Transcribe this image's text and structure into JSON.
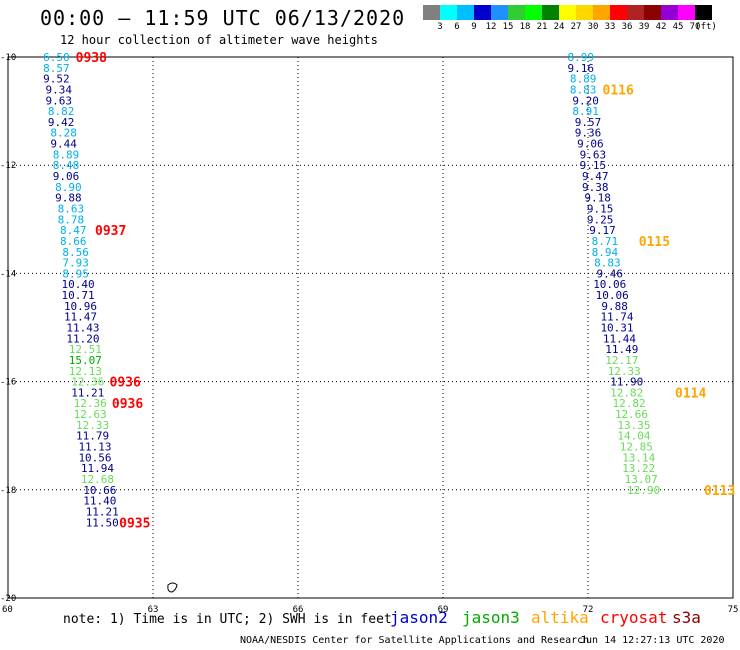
{
  "header": {
    "title": "00:00 – 11:59 UTC 06/13/2020",
    "subtitle": "12 hour collection of altimeter wave heights"
  },
  "legend": {
    "swatches": [
      {
        "color": "#808080"
      },
      {
        "color": "#00ffff"
      },
      {
        "color": "#00bfff"
      },
      {
        "color": "#0000cd"
      },
      {
        "color": "#1e90ff"
      },
      {
        "color": "#32cd32"
      },
      {
        "color": "#00ff00"
      },
      {
        "color": "#008000"
      },
      {
        "color": "#ffff00"
      },
      {
        "color": "#ffd700"
      },
      {
        "color": "#ffa500"
      },
      {
        "color": "#ff0000"
      },
      {
        "color": "#b22222"
      },
      {
        "color": "#8b0000"
      },
      {
        "color": "#9400d3"
      },
      {
        "color": "#ff00ff"
      },
      {
        "color": "#000000"
      }
    ],
    "labels": [
      "3",
      "6",
      "9",
      "12",
      "15",
      "18",
      "21",
      "24",
      "27",
      "30",
      "33",
      "36",
      "39",
      "42",
      "45",
      "70",
      "(ft)"
    ]
  },
  "map": {
    "x_ticks": [
      "60",
      "63",
      "66",
      "69",
      "72",
      "75"
    ],
    "y_ticks": [
      "-10",
      "-12",
      "-14",
      "-16",
      "-18",
      "-20"
    ],
    "lon_range": [
      60,
      75
    ],
    "lat_range": [
      -20,
      -10
    ]
  },
  "colors": {
    "cryosat": "#ff0000",
    "altika": "#ffa500",
    "cyan": "#00b0e8",
    "blue": "#00008b",
    "green": "#66dd55",
    "darkgreen": "#00aa00"
  },
  "chart_data": {
    "type": "scatter",
    "x_label": "",
    "y_label": "",
    "units": "ft",
    "tracks": [
      {
        "name": "track-west",
        "points": [
          {
            "lon": 61.0,
            "lat": -10.0,
            "v": "6.50",
            "c": "cyan"
          },
          {
            "lon": 61.0,
            "lat": -10.2,
            "v": "8.57",
            "c": "cyan"
          },
          {
            "lon": 61.0,
            "lat": -10.4,
            "v": "9.52",
            "c": "blue"
          },
          {
            "lon": 61.05,
            "lat": -10.6,
            "v": "9.34",
            "c": "blue"
          },
          {
            "lon": 61.05,
            "lat": -10.8,
            "v": "9.63",
            "c": "blue"
          },
          {
            "lon": 61.1,
            "lat": -11.0,
            "v": "8.82",
            "c": "cyan"
          },
          {
            "lon": 61.1,
            "lat": -11.2,
            "v": "9.42",
            "c": "blue"
          },
          {
            "lon": 61.15,
            "lat": -11.4,
            "v": "8.28",
            "c": "cyan"
          },
          {
            "lon": 61.15,
            "lat": -11.6,
            "v": "9.44",
            "c": "blue"
          },
          {
            "lon": 61.2,
            "lat": -11.8,
            "v": "8.89",
            "c": "cyan"
          },
          {
            "lon": 61.2,
            "lat": -12.0,
            "v": "8.48",
            "c": "cyan"
          },
          {
            "lon": 61.2,
            "lat": -12.2,
            "v": "9.06",
            "c": "blue"
          },
          {
            "lon": 61.25,
            "lat": -12.4,
            "v": "8.90",
            "c": "cyan"
          },
          {
            "lon": 61.25,
            "lat": -12.6,
            "v": "9.88",
            "c": "blue"
          },
          {
            "lon": 61.3,
            "lat": -12.8,
            "v": "8.63",
            "c": "cyan"
          },
          {
            "lon": 61.3,
            "lat": -13.0,
            "v": "8.78",
            "c": "cyan"
          },
          {
            "lon": 61.35,
            "lat": -13.2,
            "v": "8.47",
            "c": "cyan"
          },
          {
            "lon": 61.35,
            "lat": -13.4,
            "v": "8.66",
            "c": "cyan"
          },
          {
            "lon": 61.4,
            "lat": -13.6,
            "v": "8.56",
            "c": "cyan"
          },
          {
            "lon": 61.4,
            "lat": -13.8,
            "v": "7.93",
            "c": "cyan"
          },
          {
            "lon": 61.4,
            "lat": -14.0,
            "v": "8.95",
            "c": "cyan"
          },
          {
            "lon": 61.45,
            "lat": -14.2,
            "v": "10.40",
            "c": "blue"
          },
          {
            "lon": 61.45,
            "lat": -14.4,
            "v": "10.71",
            "c": "blue"
          },
          {
            "lon": 61.5,
            "lat": -14.6,
            "v": "10.96",
            "c": "blue"
          },
          {
            "lon": 61.5,
            "lat": -14.8,
            "v": "11.47",
            "c": "blue"
          },
          {
            "lon": 61.55,
            "lat": -15.0,
            "v": "11.43",
            "c": "blue"
          },
          {
            "lon": 61.55,
            "lat": -15.2,
            "v": "11.20",
            "c": "blue"
          },
          {
            "lon": 61.6,
            "lat": -15.4,
            "v": "12.51",
            "c": "green"
          },
          {
            "lon": 61.6,
            "lat": -15.6,
            "v": "15.07",
            "c": "darkgreen"
          },
          {
            "lon": 61.6,
            "lat": -15.8,
            "v": "12.13",
            "c": "green"
          },
          {
            "lon": 61.65,
            "lat": -16.0,
            "v": "12.36",
            "c": "green"
          },
          {
            "lon": 61.65,
            "lat": -16.2,
            "v": "11.21",
            "c": "blue"
          },
          {
            "lon": 61.7,
            "lat": -16.4,
            "v": "12.36",
            "c": "green"
          },
          {
            "lon": 61.7,
            "lat": -16.6,
            "v": "12.63",
            "c": "green"
          },
          {
            "lon": 61.75,
            "lat": -16.8,
            "v": "12.33",
            "c": "green"
          },
          {
            "lon": 61.75,
            "lat": -17.0,
            "v": "11.79",
            "c": "blue"
          },
          {
            "lon": 61.8,
            "lat": -17.2,
            "v": "11.13",
            "c": "blue"
          },
          {
            "lon": 61.8,
            "lat": -17.4,
            "v": "10.56",
            "c": "blue"
          },
          {
            "lon": 61.85,
            "lat": -17.6,
            "v": "11.94",
            "c": "blue"
          },
          {
            "lon": 61.85,
            "lat": -17.8,
            "v": "12.68",
            "c": "green"
          },
          {
            "lon": 61.9,
            "lat": -18.0,
            "v": "10.66",
            "c": "blue"
          },
          {
            "lon": 61.9,
            "lat": -18.2,
            "v": "11.40",
            "c": "blue"
          },
          {
            "lon": 61.95,
            "lat": -18.4,
            "v": "11.21",
            "c": "blue"
          },
          {
            "lon": 61.95,
            "lat": -18.6,
            "v": "11.50",
            "c": "blue"
          }
        ]
      },
      {
        "name": "track-east",
        "points": [
          {
            "lon": 71.85,
            "lat": -10.0,
            "v": "8.99",
            "c": "cyan"
          },
          {
            "lon": 71.85,
            "lat": -10.2,
            "v": "9.16",
            "c": "blue"
          },
          {
            "lon": 71.9,
            "lat": -10.4,
            "v": "8.89",
            "c": "cyan"
          },
          {
            "lon": 71.9,
            "lat": -10.6,
            "v": "8.83",
            "c": "cyan"
          },
          {
            "lon": 71.95,
            "lat": -10.8,
            "v": "9.20",
            "c": "blue"
          },
          {
            "lon": 71.95,
            "lat": -11.0,
            "v": "8.91",
            "c": "cyan"
          },
          {
            "lon": 72.0,
            "lat": -11.2,
            "v": "9.57",
            "c": "blue"
          },
          {
            "lon": 72.0,
            "lat": -11.4,
            "v": "9.36",
            "c": "blue"
          },
          {
            "lon": 72.05,
            "lat": -11.6,
            "v": "9.06",
            "c": "blue"
          },
          {
            "lon": 72.1,
            "lat": -11.8,
            "v": "9.63",
            "c": "blue"
          },
          {
            "lon": 72.1,
            "lat": -12.0,
            "v": "9.15",
            "c": "blue"
          },
          {
            "lon": 72.15,
            "lat": -12.2,
            "v": "9.47",
            "c": "blue"
          },
          {
            "lon": 72.15,
            "lat": -12.4,
            "v": "9.38",
            "c": "blue"
          },
          {
            "lon": 72.2,
            "lat": -12.6,
            "v": "9.18",
            "c": "blue"
          },
          {
            "lon": 72.25,
            "lat": -12.8,
            "v": "9.15",
            "c": "blue"
          },
          {
            "lon": 72.25,
            "lat": -13.0,
            "v": "9.25",
            "c": "blue"
          },
          {
            "lon": 72.3,
            "lat": -13.2,
            "v": "9.17",
            "c": "blue"
          },
          {
            "lon": 72.35,
            "lat": -13.4,
            "v": "8.71",
            "c": "cyan"
          },
          {
            "lon": 72.35,
            "lat": -13.6,
            "v": "8.94",
            "c": "cyan"
          },
          {
            "lon": 72.4,
            "lat": -13.8,
            "v": "8.83",
            "c": "cyan"
          },
          {
            "lon": 72.45,
            "lat": -14.0,
            "v": "9.46",
            "c": "blue"
          },
          {
            "lon": 72.45,
            "lat": -14.2,
            "v": "10.06",
            "c": "blue"
          },
          {
            "lon": 72.5,
            "lat": -14.4,
            "v": "10.06",
            "c": "blue"
          },
          {
            "lon": 72.55,
            "lat": -14.6,
            "v": "9.88",
            "c": "blue"
          },
          {
            "lon": 72.6,
            "lat": -14.8,
            "v": "11.74",
            "c": "blue"
          },
          {
            "lon": 72.6,
            "lat": -15.0,
            "v": "10.31",
            "c": "blue"
          },
          {
            "lon": 72.65,
            "lat": -15.2,
            "v": "11.44",
            "c": "blue"
          },
          {
            "lon": 72.7,
            "lat": -15.4,
            "v": "11.49",
            "c": "blue"
          },
          {
            "lon": 72.7,
            "lat": -15.6,
            "v": "12.17",
            "c": "green"
          },
          {
            "lon": 72.75,
            "lat": -15.8,
            "v": "12.33",
            "c": "green"
          },
          {
            "lon": 72.8,
            "lat": -16.0,
            "v": "11.90",
            "c": "blue"
          },
          {
            "lon": 72.8,
            "lat": -16.2,
            "v": "12.82",
            "c": "green"
          },
          {
            "lon": 72.85,
            "lat": -16.4,
            "v": "12.82",
            "c": "green"
          },
          {
            "lon": 72.9,
            "lat": -16.6,
            "v": "12.66",
            "c": "green"
          },
          {
            "lon": 72.95,
            "lat": -16.8,
            "v": "13.35",
            "c": "green"
          },
          {
            "lon": 72.95,
            "lat": -17.0,
            "v": "14.04",
            "c": "green"
          },
          {
            "lon": 73.0,
            "lat": -17.2,
            "v": "12.85",
            "c": "green"
          },
          {
            "lon": 73.05,
            "lat": -17.4,
            "v": "13.14",
            "c": "green"
          },
          {
            "lon": 73.05,
            "lat": -17.6,
            "v": "13.22",
            "c": "green"
          },
          {
            "lon": 73.1,
            "lat": -17.8,
            "v": "13.07",
            "c": "green"
          },
          {
            "lon": 73.15,
            "lat": -18.0,
            "v": "12.90",
            "c": "green"
          }
        ]
      }
    ],
    "time_labels": [
      {
        "text": "0938",
        "lon": 61.4,
        "lat": -10.0,
        "c": "cryosat"
      },
      {
        "text": "0937",
        "lon": 61.8,
        "lat": -13.2,
        "c": "cryosat"
      },
      {
        "text": "0936",
        "lon": 62.1,
        "lat": -16.0,
        "c": "cryosat"
      },
      {
        "text": "0936",
        "lon": 62.15,
        "lat": -16.4,
        "c": "cryosat"
      },
      {
        "text": "0935",
        "lon": 62.3,
        "lat": -18.6,
        "c": "cryosat"
      },
      {
        "text": "0116",
        "lon": 72.3,
        "lat": -10.6,
        "c": "altika"
      },
      {
        "text": "0115",
        "lon": 73.05,
        "lat": -13.4,
        "c": "altika"
      },
      {
        "text": "0114",
        "lon": 73.8,
        "lat": -16.2,
        "c": "altika"
      },
      {
        "text": "0113",
        "lon": 74.4,
        "lat": -18.0,
        "c": "altika"
      }
    ]
  },
  "footer": {
    "note": "note: 1) Time is in UTC; 2) SWH is in feet",
    "satellites": [
      {
        "name": "jason2",
        "color": "#0000cd"
      },
      {
        "name": "jason3",
        "color": "#00aa00"
      },
      {
        "name": "altika",
        "color": "#ffa500"
      },
      {
        "name": "cryosat",
        "color": "#ff0000"
      },
      {
        "name": "s3a",
        "color": "#8b0000"
      }
    ],
    "credit": "NOAA/NESDIS Center for Satellite Applications and Research",
    "timestamp": "Jun 14 12:27:13 UTC 2020"
  }
}
